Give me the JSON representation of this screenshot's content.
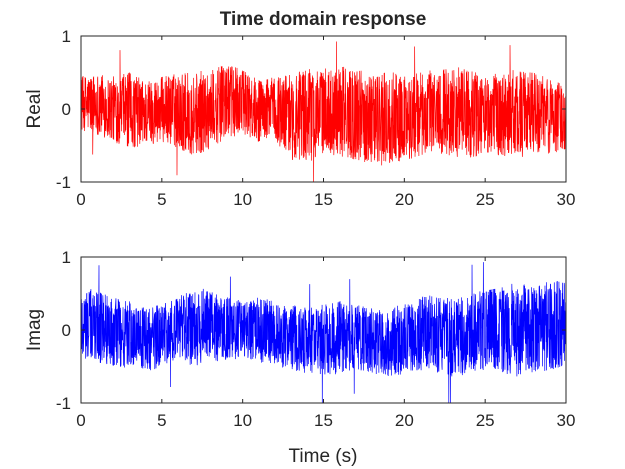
{
  "chart_data": [
    {
      "type": "line",
      "title": "Time domain response",
      "xlabel": "",
      "ylabel": "Real",
      "xlim": [
        0,
        30
      ],
      "ylim": [
        -1,
        1
      ],
      "xticks": [
        "0",
        "5",
        "10",
        "15",
        "20",
        "25",
        "30"
      ],
      "yticks": [
        "1",
        "0",
        "-1"
      ],
      "color": "#ff0000",
      "grid": false,
      "series": [
        {
          "x": [
            0,
            1,
            2,
            3,
            4,
            5,
            6,
            7,
            8,
            9,
            10,
            11,
            12,
            13,
            14,
            15,
            16,
            17,
            18,
            19,
            20,
            21,
            22,
            23,
            24,
            25,
            26,
            27,
            28,
            29,
            30
          ],
          "envelope_upper": [
            0.45,
            0.5,
            0.45,
            0.5,
            0.4,
            0.45,
            0.5,
            0.5,
            0.55,
            0.6,
            0.55,
            0.4,
            0.45,
            0.5,
            0.55,
            0.55,
            0.6,
            0.55,
            0.5,
            0.55,
            0.45,
            0.5,
            0.55,
            0.6,
            0.55,
            0.45,
            0.5,
            0.55,
            0.5,
            0.45,
            0.3
          ],
          "envelope_lower": [
            -0.3,
            -0.35,
            -0.45,
            -0.55,
            -0.5,
            -0.45,
            -0.55,
            -0.65,
            -0.55,
            -0.4,
            -0.35,
            -0.45,
            -0.45,
            -0.7,
            -0.75,
            -0.6,
            -0.65,
            -0.7,
            -0.75,
            -0.8,
            -0.7,
            -0.65,
            -0.6,
            -0.65,
            -0.7,
            -0.6,
            -0.65,
            -0.7,
            -0.6,
            -0.65,
            -0.55
          ]
        }
      ]
    },
    {
      "type": "line",
      "title": "",
      "xlabel": "Time (s)",
      "ylabel": "Imag",
      "xlim": [
        0,
        30
      ],
      "ylim": [
        -1,
        1
      ],
      "xticks": [
        "0",
        "5",
        "10",
        "15",
        "20",
        "25",
        "30"
      ],
      "yticks": [
        "1",
        "0",
        "-1"
      ],
      "color": "#0000ff",
      "grid": false,
      "series": [
        {
          "x": [
            0,
            1,
            2,
            3,
            4,
            5,
            6,
            7,
            8,
            9,
            10,
            11,
            12,
            13,
            14,
            15,
            16,
            17,
            18,
            19,
            20,
            21,
            22,
            23,
            24,
            25,
            26,
            27,
            28,
            29,
            30
          ],
          "envelope_upper": [
            0.6,
            0.55,
            0.45,
            0.4,
            0.3,
            0.35,
            0.45,
            0.6,
            0.55,
            0.45,
            0.4,
            0.45,
            0.4,
            0.35,
            0.3,
            0.35,
            0.4,
            0.35,
            0.3,
            0.25,
            0.4,
            0.45,
            0.5,
            0.45,
            0.5,
            0.55,
            0.6,
            0.65,
            0.6,
            0.7,
            0.65
          ],
          "envelope_lower": [
            -0.4,
            -0.45,
            -0.5,
            -0.55,
            -0.6,
            -0.5,
            -0.45,
            -0.5,
            -0.45,
            -0.4,
            -0.4,
            -0.45,
            -0.5,
            -0.55,
            -0.6,
            -0.65,
            -0.6,
            -0.55,
            -0.6,
            -0.65,
            -0.6,
            -0.55,
            -0.6,
            -0.65,
            -0.6,
            -0.55,
            -0.6,
            -0.65,
            -0.6,
            -0.55,
            -0.5
          ]
        }
      ]
    }
  ]
}
